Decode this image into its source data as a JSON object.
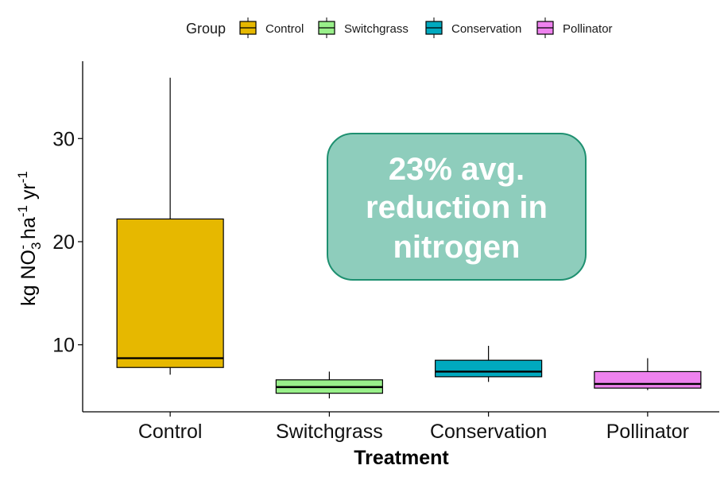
{
  "chart_data": {
    "type": "box",
    "legend": {
      "title": "Group",
      "placement": "top",
      "entries": [
        {
          "name": "Control",
          "color": "#E6B800"
        },
        {
          "name": "Switchgrass",
          "color": "#99F08A"
        },
        {
          "name": "Conservation",
          "color": "#00A9BF"
        },
        {
          "name": "Pollinator",
          "color": "#EE82EE"
        }
      ]
    },
    "xlabel": "Treatment",
    "ylabel": {
      "base": "kg NO",
      "sub": "3",
      "sup_no3": "-",
      "ha": " ha",
      "sup_ha": "-1",
      "yr": " yr",
      "sup_yr": "-1"
    },
    "categories": [
      "Control",
      "Switchgrass",
      "Conservation",
      "Pollinator"
    ],
    "yticks": [
      10,
      20,
      30
    ],
    "ylim": [
      3.5,
      37.5
    ],
    "boxes": [
      {
        "name": "Control",
        "min": 7.1,
        "q1": 7.8,
        "median": 8.7,
        "q3": 22.2,
        "max": 35.9,
        "color": "#E6B800"
      },
      {
        "name": "Switchgrass",
        "min": 4.8,
        "q1": 5.3,
        "median": 5.9,
        "q3": 6.6,
        "max": 7.4,
        "color": "#99F08A"
      },
      {
        "name": "Conservation",
        "min": 6.4,
        "q1": 6.9,
        "median": 7.4,
        "q3": 8.5,
        "max": 9.9,
        "color": "#00A9BF"
      },
      {
        "name": "Pollinator",
        "min": 5.6,
        "q1": 5.8,
        "median": 6.2,
        "q3": 7.4,
        "max": 8.7,
        "color": "#EE82EE"
      }
    ],
    "annotation": {
      "lines": [
        "23% avg.",
        "reduction in",
        "nitrogen"
      ],
      "fill": "#8ECDBC",
      "stroke": "#1E9070"
    },
    "grid": false
  }
}
